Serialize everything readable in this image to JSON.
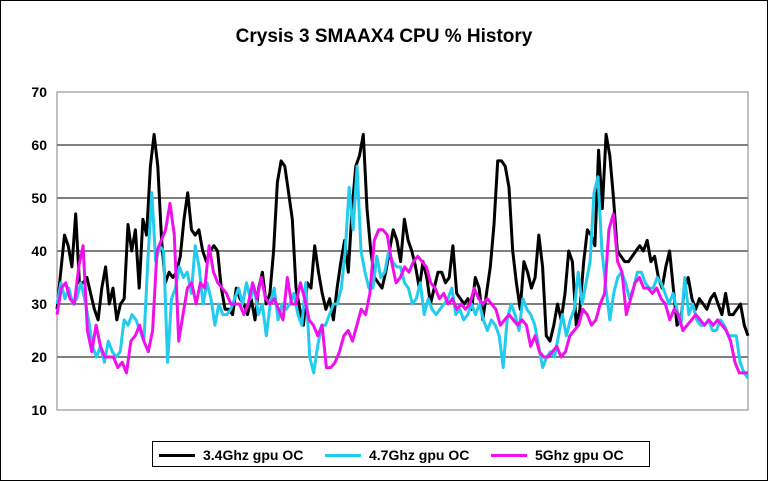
{
  "chart_data": {
    "type": "line",
    "title": "Crysis 3 SMAAX4 CPU % History",
    "xlabel": "",
    "ylabel": "",
    "ylim": [
      10,
      70
    ],
    "yticks": [
      10,
      20,
      30,
      40,
      50,
      60,
      70
    ],
    "grid": true,
    "legend_position": "bottom",
    "series": [
      {
        "name": "3.4Ghz gpu OC",
        "color": "#000000",
        "values": [
          29,
          36,
          43,
          41,
          37,
          47,
          34,
          34,
          35,
          32,
          29,
          27,
          33,
          37,
          30,
          33,
          27,
          30,
          31,
          45,
          40,
          44,
          33,
          46,
          43,
          56,
          62,
          56,
          42,
          34,
          36,
          35,
          36,
          39,
          46,
          51,
          44,
          43,
          44,
          40,
          38,
          40,
          41,
          40,
          33,
          29,
          29,
          28,
          33,
          31,
          30,
          28,
          31,
          27,
          33,
          36,
          30,
          32,
          40,
          53,
          57,
          56,
          51,
          46,
          33,
          29,
          26,
          34,
          33,
          41,
          36,
          32,
          29,
          31,
          27,
          33,
          38,
          42,
          36,
          48,
          56,
          58,
          62,
          48,
          40,
          35,
          34,
          33,
          36,
          40,
          44,
          42,
          38,
          46,
          42,
          40,
          37,
          33,
          38,
          35,
          30,
          33,
          36,
          36,
          34,
          35,
          41,
          32,
          31,
          30,
          31,
          29,
          35,
          33,
          27,
          32,
          37,
          45,
          57,
          57,
          56,
          52,
          40,
          34,
          29,
          38,
          36,
          33,
          35,
          43,
          37,
          24,
          23,
          26,
          30,
          27,
          32,
          40,
          38,
          26,
          29,
          38,
          44,
          43,
          41,
          59,
          48,
          62,
          58,
          50,
          40,
          39,
          38,
          38,
          39,
          40,
          41,
          40,
          42,
          38,
          39,
          35,
          33,
          37,
          40,
          33,
          26,
          27,
          33,
          35,
          31,
          29,
          31,
          30,
          29,
          31,
          32,
          30,
          28,
          32,
          28,
          28,
          29,
          30,
          26,
          24
        ]
      },
      {
        "name": "4.7Ghz gpu OC",
        "color": "#22ccee",
        "values": [
          30,
          34,
          31,
          33,
          30,
          31,
          34,
          31,
          27,
          22,
          20,
          22,
          19,
          23,
          21,
          20,
          21,
          27,
          26,
          28,
          27,
          25,
          23,
          38,
          51,
          38,
          41,
          40,
          19,
          31,
          33,
          37,
          35,
          36,
          32,
          41,
          37,
          30,
          34,
          31,
          26,
          30,
          28,
          28,
          29,
          31,
          33,
          30,
          34,
          31,
          33,
          28,
          30,
          24,
          30,
          33,
          27,
          30,
          29,
          30,
          32,
          28,
          26,
          34,
          20,
          17,
          22,
          26,
          26,
          28,
          30,
          30,
          33,
          40,
          52,
          44,
          56,
          40,
          36,
          33,
          33,
          39,
          35,
          36,
          40,
          38,
          37,
          37,
          34,
          33,
          30,
          31,
          34,
          28,
          31,
          29,
          28,
          29,
          30,
          31,
          33,
          28,
          29,
          27,
          28,
          30,
          28,
          30,
          27,
          25,
          27,
          26,
          24,
          18,
          27,
          30,
          28,
          25,
          31,
          29,
          28,
          26,
          22,
          18,
          20,
          21,
          20,
          24,
          28,
          24,
          27,
          29,
          36,
          30,
          34,
          38,
          51,
          54,
          40,
          33,
          27,
          32,
          35,
          36,
          34,
          31,
          33,
          36,
          36,
          34,
          33,
          33,
          35,
          34,
          32,
          30,
          32,
          29,
          26,
          35,
          28,
          30,
          27,
          26,
          26,
          27,
          25,
          25,
          27,
          26,
          24,
          24,
          24,
          19,
          17,
          16
        ]
      },
      {
        "name": "5Ghz gpu OC",
        "color": "#ee11ee",
        "values": [
          28,
          33,
          34,
          31,
          30,
          37,
          41,
          25,
          21,
          26,
          22,
          20,
          20,
          20,
          18,
          19,
          17,
          23,
          24,
          26,
          23,
          21,
          25,
          40,
          42,
          44,
          49,
          43,
          23,
          28,
          33,
          34,
          30,
          34,
          33,
          41,
          36,
          34,
          33,
          32,
          30,
          30,
          30,
          28,
          30,
          34,
          31,
          35,
          31,
          30,
          31,
          29,
          27,
          35,
          30,
          30,
          34,
          31,
          27,
          26,
          24,
          26,
          18,
          18,
          19,
          21,
          24,
          25,
          23,
          26,
          29,
          28,
          32,
          42,
          44,
          44,
          43,
          38,
          34,
          35,
          37,
          36,
          38,
          39,
          38,
          37,
          34,
          33,
          31,
          32,
          30,
          31,
          29,
          30,
          29,
          30,
          33,
          31,
          30,
          31,
          30,
          29,
          26,
          27,
          28,
          27,
          26,
          27,
          26,
          22,
          24,
          21,
          20,
          20,
          21,
          22,
          20,
          21,
          24,
          25,
          26,
          29,
          28,
          26,
          27,
          30,
          32,
          44,
          47,
          38,
          36,
          28,
          31,
          34,
          35,
          33,
          33,
          32,
          33,
          31,
          30,
          27,
          29,
          28,
          25,
          26,
          27,
          28,
          27,
          26,
          27,
          26,
          27,
          26,
          25,
          23,
          19,
          17,
          17,
          17
        ]
      }
    ]
  }
}
